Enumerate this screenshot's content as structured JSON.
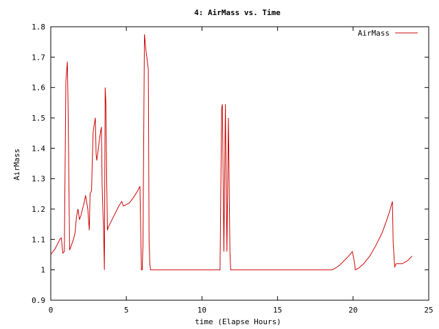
{
  "chart_data": {
    "type": "line",
    "title": "4: AirMass vs. Time",
    "xlabel": "time (Elapse Hours)",
    "ylabel": "AirMass",
    "xlim": [
      0,
      25
    ],
    "ylim": [
      0.9,
      1.8
    ],
    "x_ticks": [
      "0",
      "5",
      "10",
      "15",
      "20",
      "25"
    ],
    "y_ticks": [
      "0.9",
      "1",
      "1.1",
      "1.2",
      "1.3",
      "1.4",
      "1.5",
      "1.6",
      "1.7",
      "1.8"
    ],
    "grid": false,
    "legend_position": "top-right",
    "series": [
      {
        "name": "AirMass",
        "color": "#cc0000",
        "x": [
          0,
          0.3,
          0.6,
          0.7,
          0.8,
          0.9,
          1.0,
          1.1,
          1.15,
          1.25,
          1.5,
          1.6,
          1.7,
          1.8,
          1.9,
          2.0,
          2.2,
          2.3,
          2.45,
          2.55,
          2.6,
          2.7,
          2.75,
          2.8,
          2.85,
          2.95,
          3.0,
          3.05,
          3.1,
          3.25,
          3.35,
          3.4,
          3.5,
          3.55,
          3.6,
          3.65,
          3.7,
          3.75,
          3.8,
          3.9,
          4.1,
          4.5,
          4.7,
          4.8,
          5.0,
          5.2,
          5.5,
          5.75,
          5.9,
          6.0,
          6.05,
          6.1,
          6.2,
          6.3,
          6.35,
          6.45,
          6.5,
          6.55,
          6.6,
          6.7,
          6.8,
          7.0,
          11.2,
          11.3,
          11.35,
          11.45,
          11.55,
          11.65,
          11.75,
          11.85,
          11.9,
          12.0,
          12.1,
          18.6,
          18.8,
          19.1,
          19.4,
          19.7,
          19.95,
          20.05,
          20.15,
          20.35,
          20.7,
          21.1,
          21.5,
          21.9,
          22.2,
          22.4,
          22.6,
          22.65,
          22.75,
          22.85,
          23.25,
          23.6,
          23.9
        ],
        "y": [
          1.05,
          1.07,
          1.1,
          1.105,
          1.055,
          1.06,
          1.62,
          1.685,
          1.53,
          1.065,
          1.1,
          1.12,
          1.175,
          1.2,
          1.165,
          1.18,
          1.22,
          1.245,
          1.2,
          1.13,
          1.25,
          1.26,
          1.36,
          1.45,
          1.47,
          1.5,
          1.38,
          1.36,
          1.38,
          1.44,
          1.47,
          1.28,
          1.12,
          1.0,
          1.6,
          1.55,
          1.3,
          1.13,
          1.14,
          1.15,
          1.17,
          1.21,
          1.225,
          1.21,
          1.215,
          1.22,
          1.24,
          1.26,
          1.275,
          1.0,
          1.0,
          1.08,
          1.775,
          1.72,
          1.7,
          1.66,
          1.1,
          1.02,
          1.0,
          1.0,
          1.0,
          1.0,
          1.0,
          1.53,
          1.545,
          1.06,
          1.545,
          1.06,
          1.5,
          1.06,
          1.0,
          1.0,
          1.0,
          1.0,
          1.005,
          1.015,
          1.03,
          1.045,
          1.06,
          1.035,
          1.0,
          1.005,
          1.02,
          1.045,
          1.08,
          1.12,
          1.16,
          1.19,
          1.225,
          1.09,
          1.01,
          1.02,
          1.02,
          1.03,
          1.045
        ]
      }
    ]
  }
}
